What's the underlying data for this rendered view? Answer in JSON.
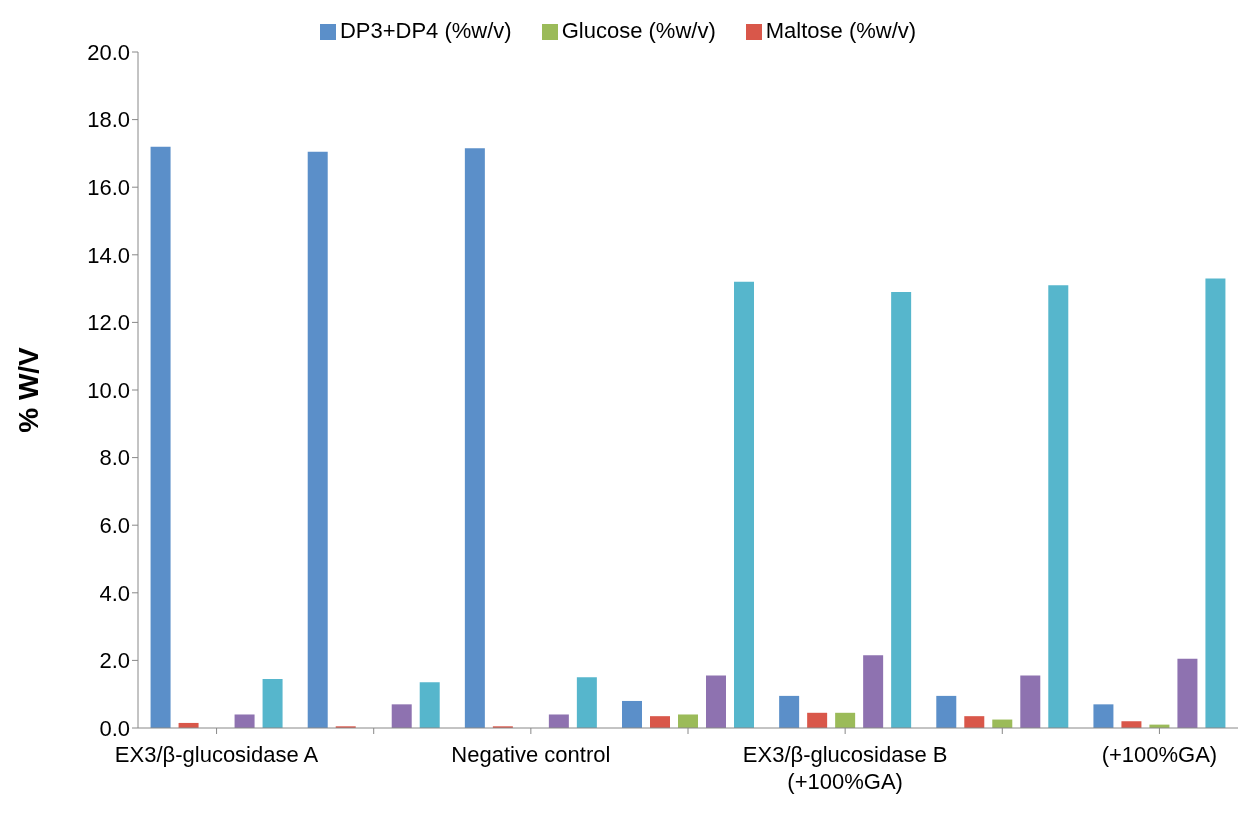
{
  "chart_data": {
    "type": "bar",
    "ylabel": "% W/V",
    "categories": [
      "EX3/β-glucosidase A",
      null,
      "Negative control",
      null,
      "EX3/β-glucosidase B\n(+100%GA)",
      null,
      "(+100%GA)"
    ],
    "series": [
      {
        "name": "DP3+DP4 (%w/v)",
        "color": "#5b8fc9",
        "values": [
          17.2,
          17.05,
          17.15,
          0.8,
          0.95,
          0.95,
          0.7
        ]
      },
      {
        "name": "Maltose   (%w/v)",
        "color": "#d9574a",
        "values": [
          0.15,
          0.05,
          0.05,
          0.35,
          0.45,
          0.35,
          0.2
        ]
      },
      {
        "name": "Glucose (%w/v)",
        "color": "#9bbb59",
        "values": [
          0,
          0,
          0,
          0.4,
          0.45,
          0.25,
          0.1
        ]
      },
      {
        "color": "#8e72b0",
        "values": [
          0.4,
          0.7,
          0.4,
          1.55,
          2.15,
          1.55,
          2.05
        ]
      },
      {
        "color": "#56b6cc",
        "values": [
          1.45,
          1.35,
          1.5,
          13.2,
          12.9,
          13.1,
          13.3
        ]
      }
    ],
    "ylim": [
      0,
      20
    ],
    "yticks": [
      {
        "value": 0,
        "label": "0.0"
      },
      {
        "value": 2,
        "label": "2.0"
      },
      {
        "value": 4,
        "label": "4.0"
      },
      {
        "value": 6,
        "label": "6.0"
      },
      {
        "value": 8,
        "label": "8.0"
      },
      {
        "value": 10,
        "label": "10.0"
      },
      {
        "value": 12,
        "label": "12.0"
      },
      {
        "value": 14,
        "label": "14.0"
      },
      {
        "value": 16,
        "label": "16.0"
      },
      {
        "value": 18,
        "label": "18.0"
      },
      {
        "value": 20,
        "label": "20.0"
      }
    ],
    "legend": "top",
    "grid": false
  }
}
